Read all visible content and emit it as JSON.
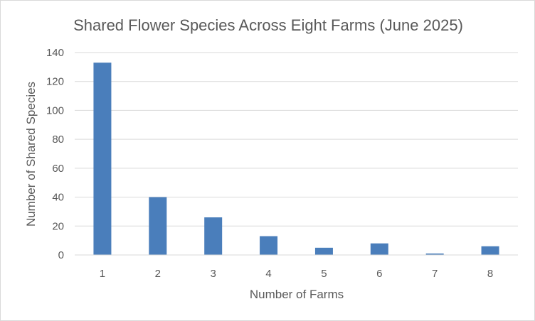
{
  "chart_data": {
    "type": "bar",
    "title": "Shared Flower Species Across Eight Farms (June 2025)",
    "xlabel": "Number of Farms",
    "ylabel": "Number of Shared Species",
    "categories": [
      "1",
      "2",
      "3",
      "4",
      "5",
      "6",
      "7",
      "8"
    ],
    "values": [
      133,
      40,
      26,
      13,
      5,
      8,
      1,
      6
    ],
    "ylim": [
      0,
      140
    ],
    "yticks": [
      0,
      20,
      40,
      60,
      80,
      100,
      120,
      140
    ],
    "grid": true,
    "legend": "none",
    "bar_color": "#4a7ebb"
  }
}
